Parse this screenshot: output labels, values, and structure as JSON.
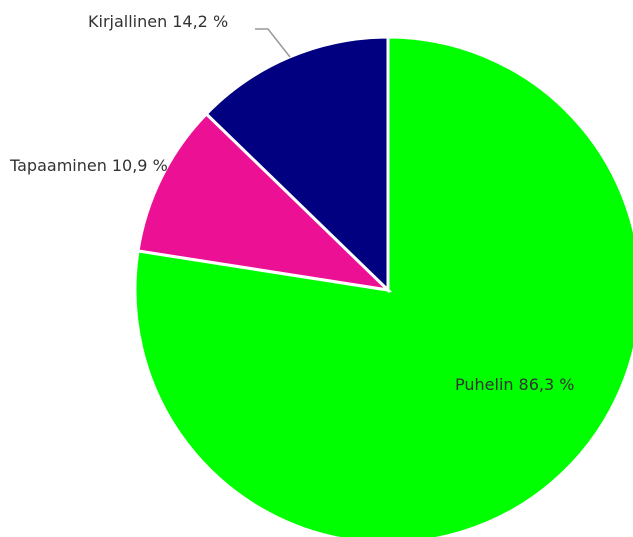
{
  "chart_data": {
    "type": "pie",
    "categories": [
      "Puhelin",
      "Tapaaminen",
      "Kirjallinen"
    ],
    "values": [
      86.3,
      10.9,
      14.2
    ],
    "value_labels": [
      "86,3 %",
      "10,9 %",
      "14,2 %"
    ],
    "colors": [
      "#00ff00",
      "#ec1094",
      "#000080"
    ]
  }
}
